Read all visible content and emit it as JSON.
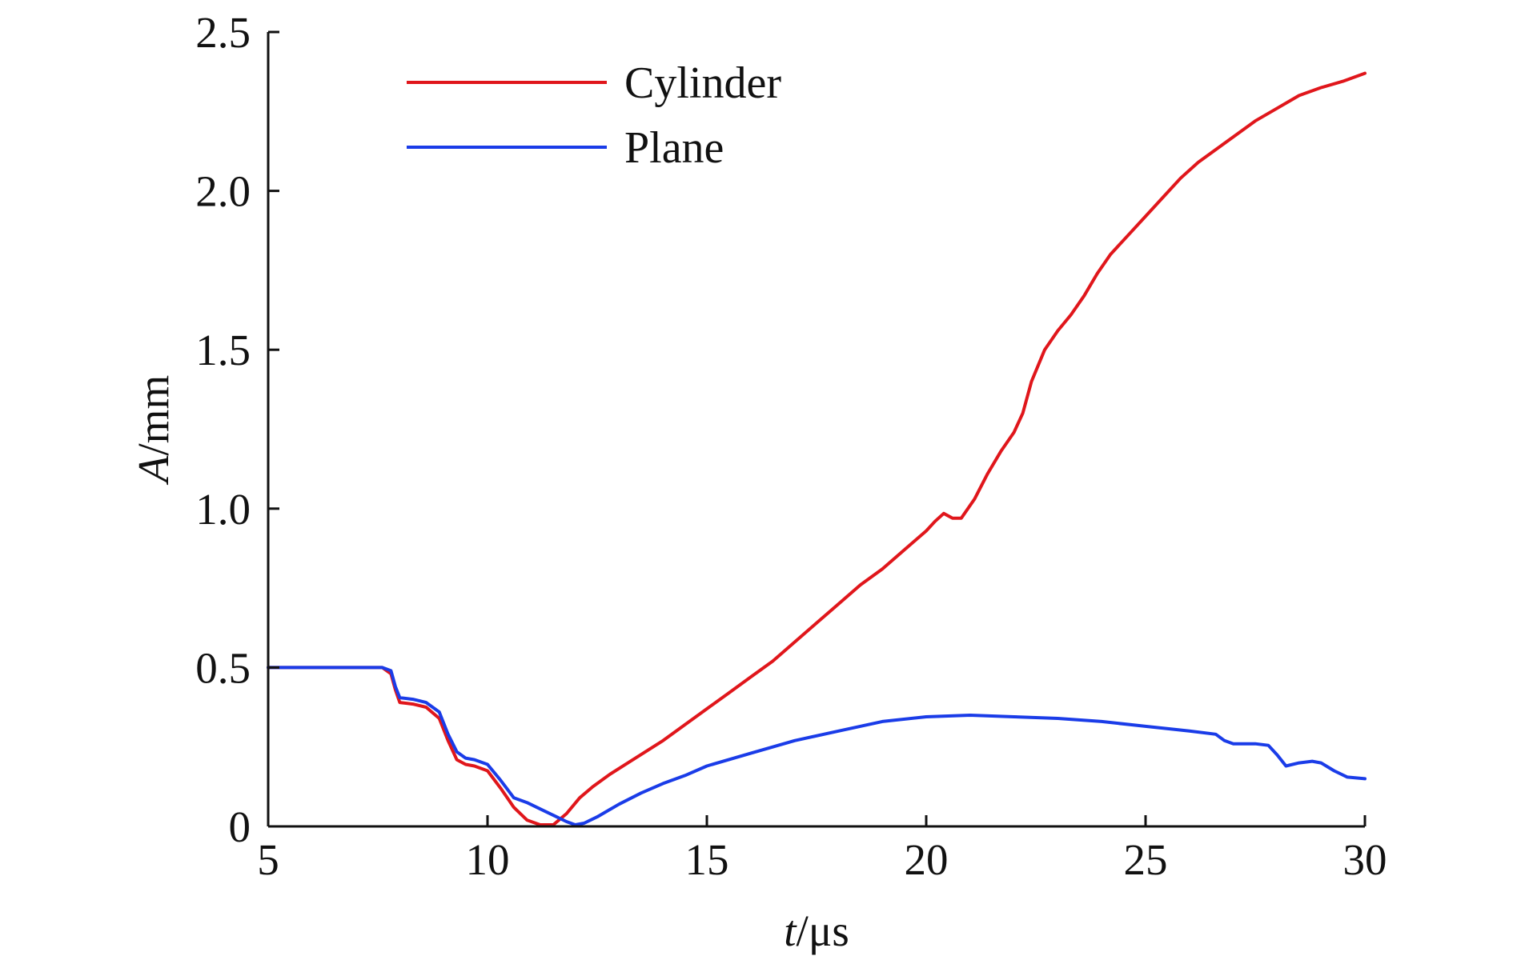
{
  "chart_data": {
    "type": "line",
    "title": "",
    "xlabel_var": "t",
    "xlabel_unit": "/μs",
    "ylabel_var": "A",
    "ylabel_unit": "/mm",
    "xlim": [
      5,
      30
    ],
    "ylim": [
      0,
      2.5
    ],
    "xticks": [
      5,
      10,
      15,
      20,
      25,
      30
    ],
    "yticks": [
      0,
      0.5,
      1.0,
      1.5,
      2.0,
      2.5
    ],
    "xtick_labels": [
      "5",
      "10",
      "15",
      "20",
      "25",
      "30"
    ],
    "ytick_labels": [
      "0",
      "0.5",
      "1.0",
      "1.5",
      "2.0",
      "2.5"
    ],
    "grid": false,
    "legend_position": "top-left",
    "series": [
      {
        "name": "Cylinder",
        "color": "#e0161b",
        "x": [
          5,
          7.6,
          7.8,
          7.9,
          8.0,
          8.3,
          8.6,
          8.9,
          9.1,
          9.3,
          9.5,
          9.7,
          10.0,
          10.3,
          10.6,
          10.9,
          11.2,
          11.5,
          11.8,
          12.1,
          12.4,
          12.8,
          13.2,
          13.6,
          14.0,
          14.5,
          15.0,
          15.5,
          16.0,
          16.5,
          17.0,
          17.5,
          18.0,
          18.5,
          19.0,
          19.5,
          20.0,
          20.2,
          20.4,
          20.6,
          20.8,
          21.1,
          21.4,
          21.7,
          22.0,
          22.2,
          22.4,
          22.7,
          23.0,
          23.3,
          23.6,
          23.9,
          24.2,
          24.6,
          25.0,
          25.4,
          25.8,
          26.2,
          26.6,
          27.0,
          27.5,
          28.0,
          28.5,
          29.0,
          29.5,
          30.0
        ],
        "y": [
          0.5,
          0.5,
          0.48,
          0.43,
          0.39,
          0.385,
          0.375,
          0.34,
          0.27,
          0.21,
          0.195,
          0.19,
          0.175,
          0.12,
          0.06,
          0.02,
          0.005,
          0.005,
          0.04,
          0.09,
          0.125,
          0.165,
          0.2,
          0.235,
          0.27,
          0.32,
          0.37,
          0.42,
          0.47,
          0.52,
          0.58,
          0.64,
          0.7,
          0.76,
          0.81,
          0.87,
          0.93,
          0.96,
          0.985,
          0.97,
          0.97,
          1.03,
          1.11,
          1.18,
          1.24,
          1.3,
          1.4,
          1.5,
          1.56,
          1.61,
          1.67,
          1.74,
          1.8,
          1.86,
          1.92,
          1.98,
          2.04,
          2.09,
          2.13,
          2.17,
          2.22,
          2.26,
          2.3,
          2.325,
          2.345,
          2.37
        ]
      },
      {
        "name": "Plane",
        "color": "#1a3ce8",
        "x": [
          5,
          7.6,
          7.8,
          7.9,
          8.0,
          8.3,
          8.6,
          8.9,
          9.1,
          9.3,
          9.5,
          9.7,
          10.0,
          10.3,
          10.6,
          10.9,
          11.2,
          11.5,
          11.8,
          12.0,
          12.2,
          12.5,
          13.0,
          13.5,
          14.0,
          14.5,
          15.0,
          16.0,
          17.0,
          18.0,
          19.0,
          20.0,
          21.0,
          22.0,
          23.0,
          24.0,
          25.0,
          26.0,
          26.6,
          26.8,
          27.0,
          27.5,
          27.8,
          28.0,
          28.2,
          28.5,
          28.8,
          29.0,
          29.3,
          29.6,
          30.0
        ],
        "y": [
          0.5,
          0.5,
          0.49,
          0.44,
          0.405,
          0.4,
          0.39,
          0.36,
          0.29,
          0.235,
          0.215,
          0.21,
          0.195,
          0.145,
          0.09,
          0.075,
          0.055,
          0.035,
          0.015,
          0.005,
          0.01,
          0.03,
          0.07,
          0.105,
          0.135,
          0.16,
          0.19,
          0.23,
          0.27,
          0.3,
          0.33,
          0.345,
          0.35,
          0.345,
          0.34,
          0.33,
          0.315,
          0.3,
          0.29,
          0.27,
          0.26,
          0.26,
          0.255,
          0.225,
          0.19,
          0.2,
          0.205,
          0.2,
          0.175,
          0.155,
          0.15
        ]
      }
    ]
  }
}
